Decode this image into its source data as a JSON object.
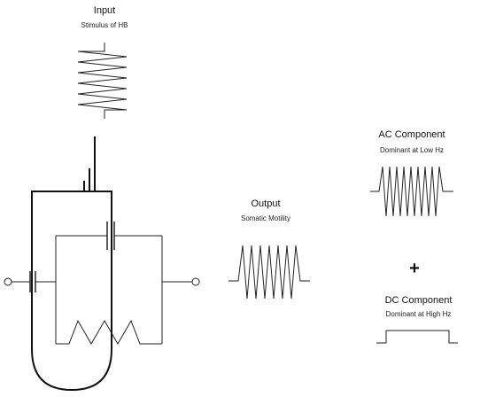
{
  "input": {
    "title": "Input",
    "subtitle": "Stimulus of HB"
  },
  "output": {
    "title": "Output",
    "subtitle": "Somatic Motility"
  },
  "ac": {
    "title": "AC Component",
    "subtitle": "Dominant at Low Hz"
  },
  "dc": {
    "title": "DC Component",
    "subtitle": "Dominant at High Hz"
  },
  "plus_sign": "+",
  "colors": {
    "stroke": "#222222",
    "background": "#ffffff"
  }
}
